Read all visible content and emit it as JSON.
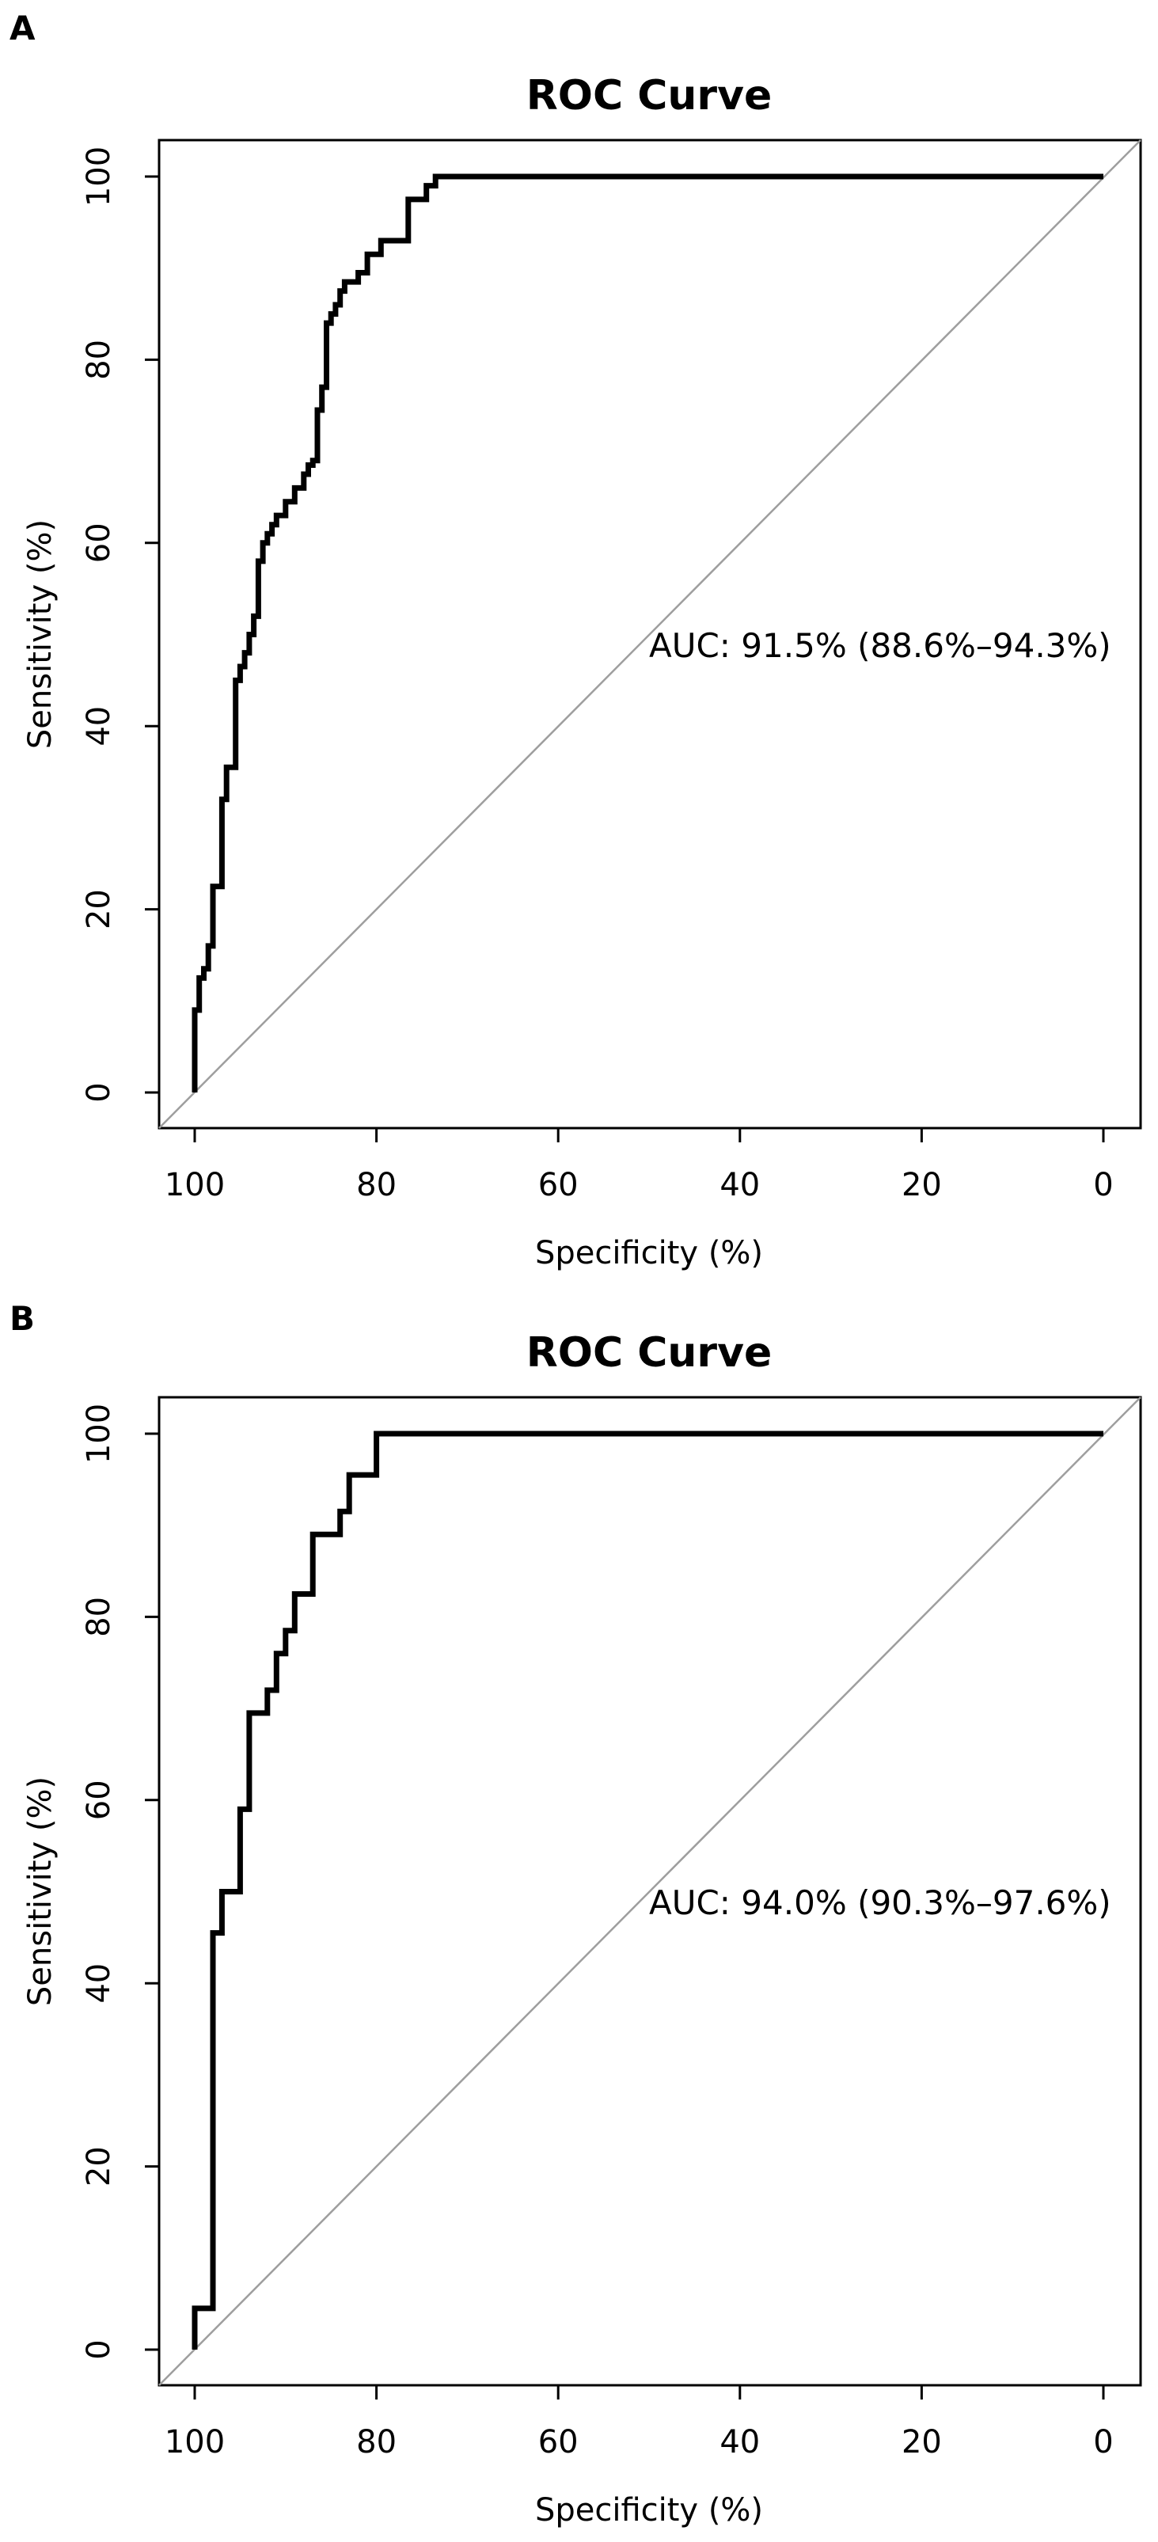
{
  "chart_data": [
    {
      "panel": "A",
      "type": "line",
      "title": "ROC Curve",
      "xlabel": "Specificity (%)",
      "ylabel": "Sensitivity (%)",
      "xlim": [
        100,
        0
      ],
      "ylim": [
        0,
        100
      ],
      "x_ticks": [
        100,
        80,
        60,
        40,
        20,
        0
      ],
      "y_ticks": [
        0,
        20,
        40,
        60,
        80,
        100
      ],
      "grid": false,
      "reference_line": "diagonal",
      "annotation": "AUC: 91.5% (88.6%–94.3%)",
      "series": [
        {
          "name": "ROC",
          "x": [
            100,
            100,
            99.5,
            99.5,
            99,
            99,
            98.5,
            98.5,
            98,
            98,
            97,
            97,
            96.5,
            96.5,
            95.5,
            95.5,
            95,
            95,
            94.5,
            94.5,
            94,
            94,
            93.5,
            93.5,
            93,
            93,
            92.5,
            92.5,
            92,
            92,
            91.5,
            91.5,
            91,
            91,
            90,
            90,
            89,
            89,
            88,
            88,
            87.5,
            87.5,
            87,
            87,
            86.5,
            86.5,
            86,
            86,
            85.5,
            85.5,
            85,
            85,
            84.5,
            84.5,
            84,
            84,
            83.5,
            83.5,
            82,
            82,
            81,
            81,
            79.5,
            79.5,
            76.5,
            76.5,
            74.5,
            74.5,
            73.5,
            73.5,
            0
          ],
          "y": [
            0,
            9,
            9,
            12.5,
            12.5,
            13.5,
            13.5,
            16,
            16,
            22.5,
            22.5,
            32,
            32,
            35.5,
            35.5,
            45,
            45,
            46.5,
            46.5,
            48,
            48,
            50,
            50,
            52,
            52,
            58,
            58,
            60,
            60,
            61,
            61,
            62,
            62,
            63,
            63,
            64.5,
            64.5,
            66,
            66,
            67.5,
            67.5,
            68.5,
            68.5,
            69,
            69,
            74.5,
            74.5,
            77,
            77,
            84,
            84,
            85,
            85,
            86,
            86,
            87.5,
            87.5,
            88.5,
            88.5,
            89.5,
            89.5,
            91.5,
            91.5,
            93,
            93,
            97.5,
            97.5,
            99,
            99,
            100,
            100
          ]
        }
      ]
    },
    {
      "panel": "B",
      "type": "line",
      "title": "ROC Curve",
      "xlabel": "Specificity (%)",
      "ylabel": "Sensitivity (%)",
      "xlim": [
        100,
        0
      ],
      "ylim": [
        0,
        100
      ],
      "x_ticks": [
        100,
        80,
        60,
        40,
        20,
        0
      ],
      "y_ticks": [
        0,
        20,
        40,
        60,
        80,
        100
      ],
      "grid": false,
      "reference_line": "diagonal",
      "annotation": "AUC: 94.0% (90.3%–97.6%)",
      "series": [
        {
          "name": "ROC",
          "x": [
            100,
            100,
            98,
            98,
            97,
            97,
            95,
            95,
            94,
            94,
            92,
            92,
            91,
            91,
            90,
            90,
            89,
            89,
            87,
            87,
            84,
            84,
            83,
            83,
            80,
            80,
            0
          ],
          "y": [
            0,
            4.5,
            4.5,
            45.5,
            45.5,
            50,
            50,
            59,
            59,
            69.5,
            69.5,
            72,
            72,
            76,
            76,
            78.5,
            78.5,
            82.5,
            82.5,
            89,
            89,
            91.5,
            91.5,
            95.5,
            95.5,
            100,
            100
          ]
        }
      ]
    }
  ]
}
